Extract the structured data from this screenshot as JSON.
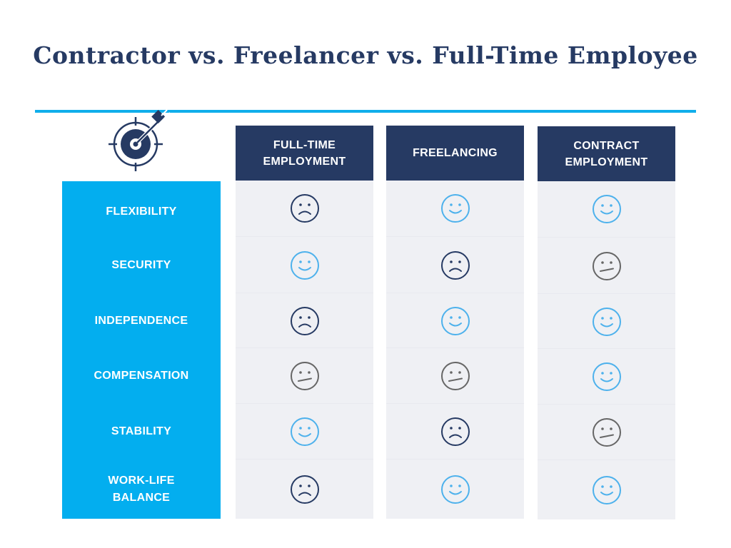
{
  "title": "Contractor vs. Freelancer vs. Full-Time Employee",
  "colors": {
    "navy": "#263a63",
    "accent_blue": "#03aeef",
    "rule_blue": "#10aeeb",
    "cell_bg": "#eff0f4",
    "happy": "#4db1ec",
    "neutral": "#666666",
    "sad": "#263a63"
  },
  "header_icon": "target-with-arrow-icon",
  "columns": [
    {
      "label": "FULL-TIME\nEMPLOYMENT"
    },
    {
      "label": "FREELANCING"
    },
    {
      "label": "CONTRACT\nEMPLOYMENT"
    }
  ],
  "rows": [
    {
      "label": "FLEXIBILITY",
      "ratings": [
        "sad",
        "happy",
        "happy"
      ]
    },
    {
      "label": "SECURITY",
      "ratings": [
        "happy",
        "sad",
        "neutral"
      ]
    },
    {
      "label": "INDEPENDENCE",
      "ratings": [
        "sad",
        "happy",
        "happy"
      ]
    },
    {
      "label": "COMPENSATION",
      "ratings": [
        "neutral",
        "neutral",
        "happy"
      ]
    },
    {
      "label": "STABILITY",
      "ratings": [
        "happy",
        "sad",
        "neutral"
      ]
    },
    {
      "label": "WORK-LIFE\nBALANCE",
      "ratings": [
        "sad",
        "happy",
        "happy"
      ]
    }
  ]
}
